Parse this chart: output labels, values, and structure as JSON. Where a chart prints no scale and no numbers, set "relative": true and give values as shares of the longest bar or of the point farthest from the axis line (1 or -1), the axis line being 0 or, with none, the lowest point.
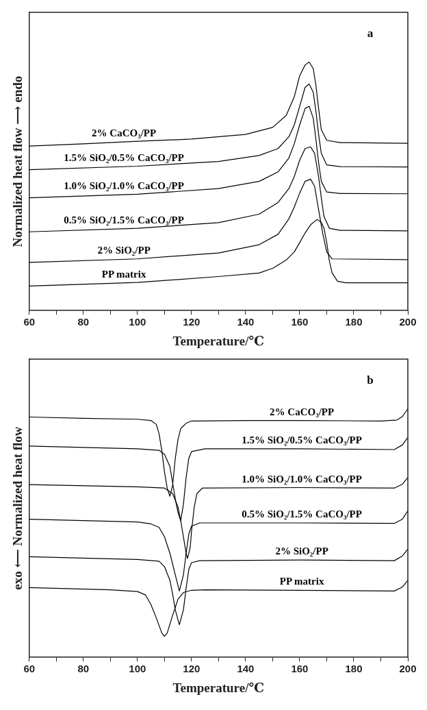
{
  "chart_data": [
    {
      "type": "line",
      "relative": true,
      "xlabel": "Temperature/℃",
      "ylabel": "Normalized heat flow ⟶ endo",
      "annotations": [
        "a"
      ],
      "xlim": [
        60,
        200
      ],
      "xticks": [
        60,
        {
          "value": 70,
          "label": null
        },
        80,
        {
          "value": 90,
          "label": null
        },
        100,
        {
          "value": 110,
          "label": null
        },
        120,
        {
          "value": 130,
          "label": null
        },
        140,
        {
          "value": 150,
          "label": null
        },
        160,
        {
          "value": 170,
          "label": null
        },
        180,
        {
          "value": 190,
          "label": null
        },
        200
      ],
      "legend": false,
      "grid": false,
      "marker": "none",
      "line_style": "solid",
      "series": [
        {
          "name": "2% CaCO₃/PP",
          "color": "#000000",
          "x": [
            60,
            80,
            100,
            120,
            140,
            150,
            155,
            158,
            160,
            162,
            163.5,
            165,
            166,
            167,
            168,
            170,
            175,
            200
          ],
          "values": [
            0.662,
            0.671,
            0.681,
            0.69,
            0.709,
            0.737,
            0.785,
            0.86,
            0.945,
            0.988,
            1,
            0.974,
            0.907,
            0.813,
            0.728,
            0.685,
            0.676,
            0.673
          ]
        },
        {
          "name": "1.5% SiO₂/0.5% CaCO₃/PP",
          "color": "#000000",
          "x": [
            60,
            100,
            130,
            145,
            152,
            156,
            158,
            160,
            162,
            163.5,
            165,
            166,
            167,
            168,
            170,
            175,
            200
          ],
          "values": [
            0.567,
            0.581,
            0.6,
            0.624,
            0.652,
            0.699,
            0.747,
            0.822,
            0.898,
            0.912,
            0.879,
            0.803,
            0.709,
            0.633,
            0.586,
            0.579,
            0.578
          ]
        },
        {
          "name": "1.0% SiO₂/1.0% CaCO₃/PP",
          "color": "#000000",
          "x": [
            60,
            100,
            130,
            145,
            152,
            156,
            158,
            160,
            162,
            163.5,
            165,
            166,
            167,
            168,
            170,
            175,
            200
          ],
          "values": [
            0.454,
            0.468,
            0.491,
            0.52,
            0.558,
            0.614,
            0.671,
            0.747,
            0.813,
            0.822,
            0.775,
            0.69,
            0.595,
            0.52,
            0.477,
            0.471,
            0.47
          ]
        },
        {
          "name": "0.5% SiO₂/1.5% CaCO₃/PP",
          "color": "#000000",
          "x": [
            60,
            100,
            130,
            145,
            152,
            156,
            158,
            160,
            162,
            164,
            165.5,
            167,
            168,
            169,
            171,
            175,
            200
          ],
          "values": [
            0.317,
            0.331,
            0.354,
            0.388,
            0.435,
            0.491,
            0.539,
            0.605,
            0.652,
            0.659,
            0.633,
            0.539,
            0.454,
            0.378,
            0.331,
            0.323,
            0.321
          ]
        },
        {
          "name": "2% SiO₂/PP",
          "color": "#000000",
          "x": [
            60,
            100,
            130,
            145,
            152,
            156,
            158,
            160,
            162,
            164,
            165.5,
            167,
            168.5,
            170,
            172,
            200
          ],
          "values": [
            0.194,
            0.208,
            0.232,
            0.265,
            0.307,
            0.369,
            0.416,
            0.473,
            0.52,
            0.529,
            0.501,
            0.406,
            0.312,
            0.236,
            0.208,
            0.205
          ]
        },
        {
          "name": "PP matrix",
          "color": "#000000",
          "x": [
            60,
            100,
            130,
            145,
            150,
            155,
            158,
            160,
            162,
            164,
            166.5,
            168,
            169,
            170,
            171,
            172,
            174,
            177,
            200
          ],
          "values": [
            0.099,
            0.113,
            0.137,
            0.151,
            0.17,
            0.203,
            0.236,
            0.274,
            0.312,
            0.345,
            0.367,
            0.354,
            0.331,
            0.274,
            0.198,
            0.151,
            0.118,
            0.112,
            0.112
          ]
        }
      ]
    },
    {
      "type": "line",
      "relative": true,
      "xlabel": "Temperature/℃",
      "ylabel": "exo ⟵ Normalized heat flow",
      "annotations": [
        "b"
      ],
      "xlim": [
        60,
        200
      ],
      "xticks": [
        60,
        {
          "value": 70,
          "label": null
        },
        80,
        {
          "value": 90,
          "label": null
        },
        100,
        {
          "value": 110,
          "label": null
        },
        120,
        {
          "value": 130,
          "label": null
        },
        140,
        {
          "value": 150,
          "label": null
        },
        160,
        {
          "value": 170,
          "label": null
        },
        180,
        {
          "value": 190,
          "label": null
        },
        200
      ],
      "legend": false,
      "grid": false,
      "marker": "none",
      "line_style": "solid",
      "series": [
        {
          "name": "2% CaCO₃/PP",
          "color": "#000000",
          "x": [
            60,
            80,
            100,
            105,
            107,
            108,
            109,
            110,
            111,
            112,
            113,
            114,
            115,
            116,
            118,
            120,
            140,
            160,
            190,
            196,
            198,
            200
          ],
          "values": [
            0.967,
            0.962,
            0.958,
            0.953,
            0.937,
            0.899,
            0.833,
            0.746,
            0.681,
            0.648,
            0.692,
            0.801,
            0.877,
            0.92,
            0.942,
            0.951,
            0.953,
            0.953,
            0.951,
            0.955,
            0.969,
            1
          ]
        },
        {
          "name": "1.5% SiO₂/0.5% CaCO₃/PP",
          "color": "#000000",
          "x": [
            60,
            100,
            108,
            110,
            112,
            113,
            114,
            115,
            116,
            117,
            118,
            119,
            120,
            125,
            160,
            195,
            198,
            200
          ],
          "values": [
            0.85,
            0.839,
            0.833,
            0.817,
            0.768,
            0.703,
            0.637,
            0.583,
            0.55,
            0.615,
            0.724,
            0.801,
            0.828,
            0.839,
            0.839,
            0.836,
            0.855,
            0.885
          ]
        },
        {
          "name": "1.0% SiO₂/1.0% CaCO₃/PP",
          "color": "#000000",
          "x": [
            60,
            100,
            110,
            113,
            115,
            116,
            117,
            118,
            118.5,
            119.5,
            120,
            121,
            122,
            124,
            160,
            195,
            198,
            200
          ],
          "values": [
            0.695,
            0.686,
            0.681,
            0.659,
            0.605,
            0.55,
            0.485,
            0.419,
            0.398,
            0.441,
            0.507,
            0.605,
            0.659,
            0.681,
            0.683,
            0.681,
            0.697,
            0.724
          ]
        },
        {
          "name": "0.5% SiO₂/1.5% CaCO₃/PP",
          "color": "#000000",
          "x": [
            60,
            100,
            105,
            108,
            110,
            112,
            114,
            115.5,
            117,
            118,
            119,
            120,
            123,
            160,
            195,
            198,
            200
          ],
          "values": [
            0.556,
            0.545,
            0.537,
            0.523,
            0.485,
            0.419,
            0.332,
            0.267,
            0.332,
            0.419,
            0.496,
            0.528,
            0.541,
            0.541,
            0.539,
            0.556,
            0.59
          ]
        },
        {
          "name": "2% SiO₂/PP",
          "color": "#000000",
          "x": [
            60,
            100,
            108,
            110,
            112,
            113,
            114,
            115.5,
            117,
            118,
            119,
            120,
            123,
            160,
            195,
            198,
            200
          ],
          "values": [
            0.405,
            0.394,
            0.387,
            0.365,
            0.31,
            0.256,
            0.191,
            0.131,
            0.191,
            0.278,
            0.354,
            0.381,
            0.389,
            0.392,
            0.389,
            0.408,
            0.436
          ]
        },
        {
          "name": "PP matrix",
          "color": "#000000",
          "x": [
            60,
            90,
            100,
            103,
            105,
            107,
            109,
            110,
            111,
            113,
            115,
            117,
            120,
            125,
            160,
            195,
            198,
            200
          ],
          "values": [
            0.281,
            0.272,
            0.265,
            0.251,
            0.212,
            0.158,
            0.098,
            0.084,
            0.098,
            0.169,
            0.234,
            0.261,
            0.27,
            0.272,
            0.27,
            0.267,
            0.283,
            0.31
          ]
        }
      ]
    }
  ]
}
